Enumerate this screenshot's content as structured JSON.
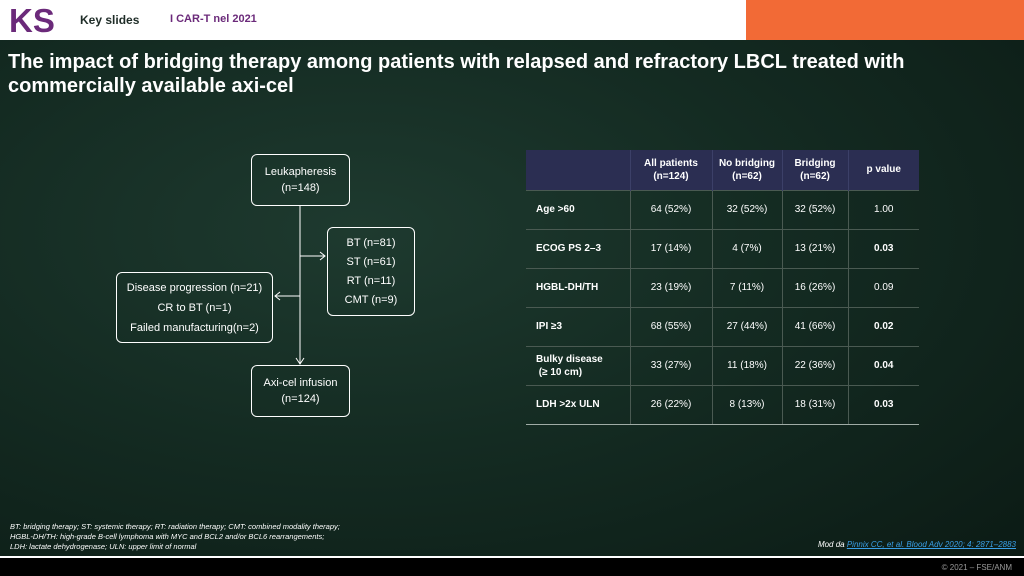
{
  "header": {
    "logo_text": "KS",
    "key_slides": "Key slides",
    "topic": "I CAR-T nel 2021",
    "colors": {
      "accent_orange": "#f26a36",
      "logo_purple": "#6b2a7a"
    }
  },
  "title": "The impact of bridging therapy among patients with relapsed and refractory LBCL treated with commercially available axi-cel",
  "flow": {
    "leukapheresis": [
      "Leukapheresis",
      "(n=148)"
    ],
    "bridging": [
      "BT (n=81)",
      "ST (n=61)",
      "RT (n=11)",
      "CMT (n=9)"
    ],
    "excluded": [
      "Disease progression (n=21)",
      "CR to BT (n=1)",
      "Failed manufacturing(n=2)"
    ],
    "infusion": [
      "Axi-cel infusion",
      "(n=124)"
    ]
  },
  "table": {
    "headers": [
      "",
      [
        "All patients",
        "(n=124)"
      ],
      [
        "No bridging",
        "(n=62)"
      ],
      [
        "Bridging",
        "(n=62)"
      ],
      [
        "p value"
      ]
    ],
    "rows": [
      {
        "label": [
          "Age >60"
        ],
        "values": [
          "64 (52%)",
          "32 (52%)",
          "32 (52%)",
          "1.00"
        ],
        "p_bold": false
      },
      {
        "label": [
          "ECOG PS 2–3"
        ],
        "values": [
          "17 (14%)",
          "4 (7%)",
          "13 (21%)",
          "0.03"
        ],
        "p_bold": true
      },
      {
        "label": [
          "HGBL-DH/TH"
        ],
        "values": [
          "23 (19%)",
          "7 (11%)",
          "16 (26%)",
          "0.09"
        ],
        "p_bold": false
      },
      {
        "label": [
          "IPI ≥3"
        ],
        "values": [
          "68 (55%)",
          "27 (44%)",
          "41 (66%)",
          "0.02"
        ],
        "p_bold": true
      },
      {
        "label": [
          "Bulky disease",
          " (≥ 10 cm)"
        ],
        "values": [
          "33 (27%)",
          "11 (18%)",
          "22 (36%)",
          "0.04"
        ],
        "p_bold": true
      },
      {
        "label": [
          "LDH >2x ULN"
        ],
        "values": [
          "26 (22%)",
          "8 (13%)",
          "18 (31%)",
          "0.03"
        ],
        "p_bold": true
      }
    ]
  },
  "footnote": [
    "BT: bridging therapy; ST: systemic therapy; RT: radiation therapy; CMT: combined modality therapy;",
    "HGBL-DH/TH: high-grade B-cell lymphoma with MYC and BCL2 and/or BCL6 rearrangements;",
    "LDH: lactate dehydrogenase; ULN: upper limit of normal"
  ],
  "citation": {
    "prefix": "Mod da ",
    "link": "Pinnix CC, et al. Blood Adv 2020; 4: 2871–2883"
  },
  "copyright": "© 2021 – FSE/ANM"
}
